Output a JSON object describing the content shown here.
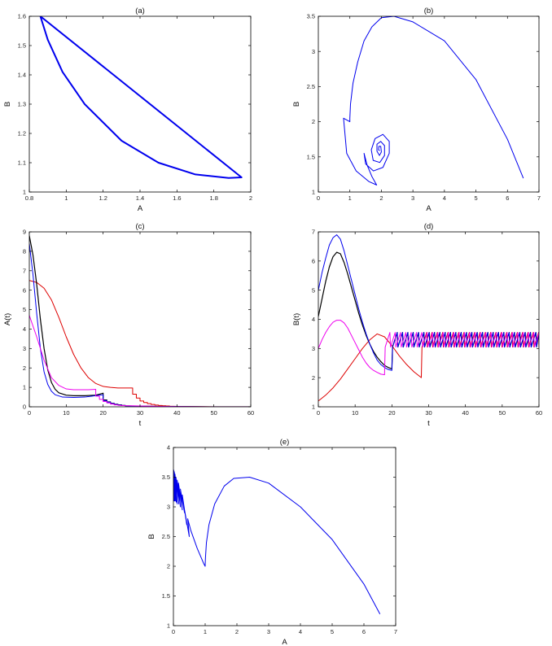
{
  "chart_data": [
    {
      "id": "a",
      "type": "line",
      "title": "(a)",
      "xlabel": "A",
      "ylabel": "B",
      "xlim": [
        0.8,
        2
      ],
      "ylim": [
        1,
        1.6
      ],
      "xticks": [
        0.8,
        1,
        1.2,
        1.4,
        1.6,
        1.8,
        2
      ],
      "yticks": [
        1,
        1.1,
        1.2,
        1.3,
        1.4,
        1.5,
        1.6
      ],
      "grid": false,
      "series": [
        {
          "color": "#0000ee",
          "width": 2.0,
          "x": [
            0.86,
            1.95,
            1.88,
            1.7,
            1.5,
            1.3,
            1.1,
            0.98,
            0.9,
            0.86
          ],
          "y": [
            1.6,
            1.05,
            1.048,
            1.06,
            1.1,
            1.175,
            1.3,
            1.41,
            1.52,
            1.6
          ]
        }
      ]
    },
    {
      "id": "b",
      "type": "line",
      "title": "(b)",
      "xlabel": "A",
      "ylabel": "B",
      "xlim": [
        0,
        7
      ],
      "ylim": [
        1,
        3.5
      ],
      "xticks": [
        0,
        1,
        2,
        3,
        4,
        5,
        6,
        7
      ],
      "yticks": [
        1,
        1.5,
        2,
        2.5,
        3,
        3.5
      ],
      "grid": false,
      "series": [
        {
          "color": "#0000ee",
          "width": 1.0,
          "x": [
            6.5,
            6.0,
            5.0,
            4.0,
            3.0,
            2.4,
            2.0,
            1.7,
            1.45,
            1.25,
            1.1,
            1.02,
            1.0,
            1.0,
            0.8,
            0.9,
            1.2,
            1.6,
            1.85,
            1.7,
            1.55,
            1.45,
            1.5,
            1.75,
            2.05,
            2.25,
            2.25,
            2.05,
            1.8,
            1.68,
            1.74,
            1.95,
            2.1,
            2.1,
            1.98,
            1.86,
            1.86,
            1.94,
            2.0,
            1.98,
            1.92,
            1.91,
            1.94
          ],
          "y": [
            1.2,
            1.75,
            2.6,
            3.15,
            3.42,
            3.5,
            3.48,
            3.35,
            3.15,
            2.85,
            2.55,
            2.25,
            2.05,
            2.0,
            2.05,
            1.55,
            1.3,
            1.15,
            1.1,
            1.22,
            1.38,
            1.55,
            1.4,
            1.3,
            1.35,
            1.55,
            1.72,
            1.82,
            1.76,
            1.6,
            1.45,
            1.42,
            1.52,
            1.66,
            1.72,
            1.68,
            1.58,
            1.52,
            1.57,
            1.65,
            1.65,
            1.6,
            1.59
          ]
        }
      ]
    },
    {
      "id": "c",
      "type": "line",
      "title": "(c)",
      "xlabel": "t",
      "ylabel": "A(t)",
      "xlim": [
        0,
        60
      ],
      "ylim": [
        0,
        9
      ],
      "xticks": [
        0,
        10,
        20,
        30,
        40,
        50,
        60
      ],
      "yticks": [
        0,
        1,
        2,
        3,
        4,
        5,
        6,
        7,
        8,
        9
      ],
      "grid": false,
      "series": [
        {
          "color": "#dd0000",
          "width": 1.0,
          "x": [
            0,
            2,
            4,
            6,
            8,
            10,
            12,
            14,
            16,
            18,
            20,
            22,
            24,
            26,
            28,
            28,
            29,
            29,
            30,
            30,
            31,
            31,
            32,
            32,
            33,
            33,
            34,
            34,
            35,
            35,
            36,
            36,
            37,
            37,
            38,
            38,
            40,
            45,
            50,
            55,
            60
          ],
          "y": [
            6.5,
            6.4,
            6.1,
            5.5,
            4.6,
            3.6,
            2.7,
            2.0,
            1.5,
            1.2,
            1.05,
            1.0,
            0.97,
            0.97,
            0.97,
            0.65,
            0.65,
            0.45,
            0.45,
            0.3,
            0.3,
            0.22,
            0.22,
            0.16,
            0.16,
            0.12,
            0.12,
            0.09,
            0.09,
            0.07,
            0.07,
            0.05,
            0.05,
            0.04,
            0.04,
            0.03,
            0.02,
            0.01,
            0.0,
            0.0,
            0.0
          ]
        },
        {
          "color": "#000000",
          "width": 1.2,
          "x": [
            0,
            1,
            2,
            3,
            4,
            5,
            6,
            7,
            8,
            10,
            12,
            15,
            18,
            20,
            20,
            21,
            21,
            22,
            22,
            23,
            23,
            24,
            24,
            25,
            25,
            26,
            26,
            28,
            30,
            35,
            40,
            50,
            60
          ],
          "y": [
            8.8,
            7.8,
            6.3,
            4.5,
            3.0,
            1.9,
            1.25,
            0.9,
            0.72,
            0.6,
            0.57,
            0.57,
            0.6,
            0.7,
            0.35,
            0.35,
            0.25,
            0.25,
            0.18,
            0.18,
            0.13,
            0.13,
            0.1,
            0.1,
            0.07,
            0.07,
            0.05,
            0.04,
            0.03,
            0.02,
            0.01,
            0.0,
            0.0
          ]
        },
        {
          "color": "#0000ee",
          "width": 1.0,
          "x": [
            0,
            1,
            2,
            3,
            4,
            5,
            6,
            7,
            9,
            12,
            15,
            17,
            20,
            20,
            21,
            21,
            22,
            22,
            23,
            23,
            24,
            24,
            25,
            25,
            26,
            26,
            28,
            30,
            35,
            40,
            50,
            60
          ],
          "y": [
            8.4,
            6.8,
            4.8,
            3.0,
            1.8,
            1.15,
            0.8,
            0.62,
            0.5,
            0.48,
            0.5,
            0.55,
            0.62,
            0.32,
            0.32,
            0.24,
            0.24,
            0.17,
            0.17,
            0.12,
            0.12,
            0.09,
            0.09,
            0.07,
            0.07,
            0.05,
            0.04,
            0.03,
            0.02,
            0.01,
            0.0,
            0.0
          ]
        },
        {
          "color": "#ee00ee",
          "width": 1.0,
          "x": [
            0,
            2,
            4,
            6,
            8,
            10,
            12,
            14,
            16,
            18,
            18,
            19,
            19,
            20,
            20,
            21,
            21,
            22,
            22,
            23,
            23,
            24,
            24,
            26,
            28,
            30,
            35,
            40,
            50,
            60
          ],
          "y": [
            4.7,
            3.6,
            2.4,
            1.5,
            1.1,
            0.92,
            0.88,
            0.88,
            0.88,
            0.9,
            0.55,
            0.55,
            0.38,
            0.38,
            0.27,
            0.27,
            0.2,
            0.2,
            0.14,
            0.14,
            0.1,
            0.1,
            0.08,
            0.06,
            0.05,
            0.04,
            0.02,
            0.01,
            0.0,
            0.0
          ]
        }
      ]
    },
    {
      "id": "d",
      "type": "line",
      "title": "(d)",
      "xlabel": "t",
      "ylabel": "B(t)",
      "xlim": [
        0,
        60
      ],
      "ylim": [
        1,
        7
      ],
      "xticks": [
        0,
        10,
        20,
        30,
        40,
        50,
        60
      ],
      "yticks": [
        1,
        2,
        3,
        4,
        5,
        6,
        7
      ],
      "grid": false,
      "osc": {
        "low": 3.05,
        "high": 3.55,
        "period": 1.45
      },
      "series": [
        {
          "color": "#dd0000",
          "width": 1.0,
          "x": [
            0,
            2,
            4,
            6,
            8,
            10,
            12,
            14,
            16,
            18,
            20,
            22,
            24,
            26,
            28
          ],
          "y": [
            1.2,
            1.4,
            1.65,
            1.95,
            2.3,
            2.65,
            3.0,
            3.3,
            3.5,
            3.4,
            3.1,
            2.75,
            2.45,
            2.2,
            2.0
          ],
          "osc_start": 28
        },
        {
          "color": "#000000",
          "width": 1.2,
          "x": [
            0,
            1,
            2,
            3,
            4,
            5,
            6,
            7,
            8,
            9,
            10,
            11,
            12,
            13,
            14,
            15,
            16,
            17,
            18,
            19,
            20
          ],
          "y": [
            4.1,
            4.7,
            5.3,
            5.8,
            6.15,
            6.3,
            6.25,
            5.95,
            5.55,
            5.1,
            4.65,
            4.2,
            3.8,
            3.45,
            3.15,
            2.9,
            2.7,
            2.55,
            2.42,
            2.35,
            2.3
          ],
          "osc_start": 20
        },
        {
          "color": "#0000ee",
          "width": 1.0,
          "x": [
            0,
            1,
            2,
            3,
            4,
            5,
            6,
            7,
            8,
            9,
            10,
            11,
            12,
            13,
            14,
            15,
            16,
            17,
            18,
            19,
            20
          ],
          "y": [
            5.0,
            5.6,
            6.1,
            6.55,
            6.8,
            6.9,
            6.75,
            6.35,
            5.85,
            5.35,
            4.85,
            4.35,
            3.9,
            3.5,
            3.15,
            2.85,
            2.6,
            2.45,
            2.35,
            2.28,
            2.25
          ],
          "osc_start": 20
        },
        {
          "color": "#ee00ee",
          "width": 1.0,
          "x": [
            0,
            1,
            2,
            3,
            4,
            5,
            6,
            7,
            8,
            9,
            10,
            11,
            12,
            13,
            14,
            15,
            16,
            17,
            18
          ],
          "y": [
            3.0,
            3.3,
            3.55,
            3.75,
            3.9,
            3.97,
            3.97,
            3.88,
            3.7,
            3.45,
            3.2,
            2.95,
            2.7,
            2.5,
            2.35,
            2.25,
            2.18,
            2.12,
            2.1
          ],
          "osc_start": 18
        }
      ]
    },
    {
      "id": "e",
      "type": "line",
      "title": "(e)",
      "xlabel": "A",
      "ylabel": "B",
      "xlim": [
        0,
        7
      ],
      "ylim": [
        1,
        4
      ],
      "xticks": [
        0,
        1,
        2,
        3,
        4,
        5,
        6,
        7
      ],
      "yticks": [
        1,
        1.5,
        2,
        2.5,
        3,
        3.5,
        4
      ],
      "grid": false,
      "series": [
        {
          "color": "#0000ee",
          "width": 1.0,
          "x": [
            6.5,
            6.0,
            5.0,
            4.0,
            3.0,
            2.4,
            1.9,
            1.6,
            1.3,
            1.12,
            1.04,
            1.01,
            1.0,
            1.0,
            0.95,
            0.75,
            0.55,
            0.45,
            0.5,
            0.35,
            0.42,
            0.28,
            0.35,
            0.22,
            0.28,
            0.16,
            0.22,
            0.12,
            0.17,
            0.08,
            0.12,
            0.05,
            0.09,
            0.03,
            0.06,
            0.02,
            0.04,
            0.01,
            0.02
          ],
          "y": [
            1.2,
            1.7,
            2.45,
            3.0,
            3.4,
            3.5,
            3.48,
            3.35,
            3.05,
            2.7,
            2.4,
            2.15,
            2.02,
            2.0,
            2.05,
            2.3,
            2.6,
            2.8,
            2.5,
            2.95,
            2.7,
            3.2,
            2.9,
            3.3,
            2.95,
            3.4,
            3.0,
            3.45,
            3.05,
            3.5,
            3.05,
            3.55,
            3.08,
            3.58,
            3.1,
            3.6,
            3.1,
            3.62,
            3.1
          ]
        }
      ]
    }
  ]
}
